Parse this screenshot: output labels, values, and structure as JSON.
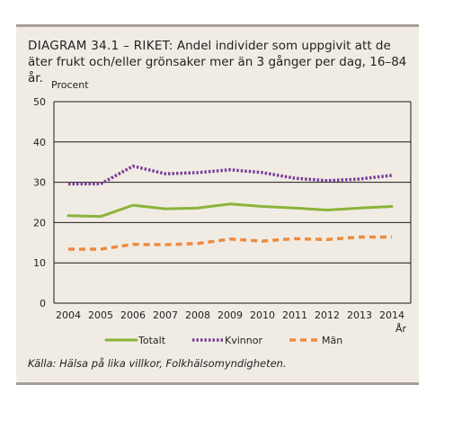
{
  "heading": {
    "label": "DIAGRAM 34.1 – RIKET:",
    "text": "Andel individer som uppgivit att de äter frukt och/eller grönsaker mer än 3 gånger per dag, 16–84 år."
  },
  "source": "Källa: Hälsa på lika villkor, Folkhälsomyndigheten.",
  "colors": {
    "totalt": "#8cb33a",
    "kvinnor": "#7a3d98",
    "man": "#ee8a3e",
    "panel": "#f0ece4",
    "rule": "#a79f96"
  },
  "chart_data": {
    "type": "line",
    "ylabel": "Procent",
    "xlabel": "År",
    "ylim": [
      0,
      50
    ],
    "yticks": [
      0,
      10,
      20,
      30,
      40,
      50
    ],
    "grid": true,
    "legend_position": "bottom",
    "categories": [
      "2004",
      "2005",
      "2006",
      "2007",
      "2008",
      "2009",
      "2010",
      "2011",
      "2012",
      "2013",
      "2014"
    ],
    "series": [
      {
        "name": "Totalt",
        "style": "solid",
        "values": [
          21.7,
          21.5,
          24.3,
          23.4,
          23.6,
          24.6,
          24.0,
          23.6,
          23.1,
          23.6,
          24.0
        ]
      },
      {
        "name": "Kvinnor",
        "style": "dotted",
        "values": [
          29.6,
          29.6,
          34.0,
          32.1,
          32.4,
          33.1,
          32.4,
          31.0,
          30.4,
          30.8,
          31.7
        ]
      },
      {
        "name": "Män",
        "style": "dashed",
        "values": [
          13.4,
          13.4,
          14.6,
          14.5,
          14.8,
          15.9,
          15.4,
          16.0,
          15.8,
          16.4,
          16.4
        ]
      }
    ]
  }
}
